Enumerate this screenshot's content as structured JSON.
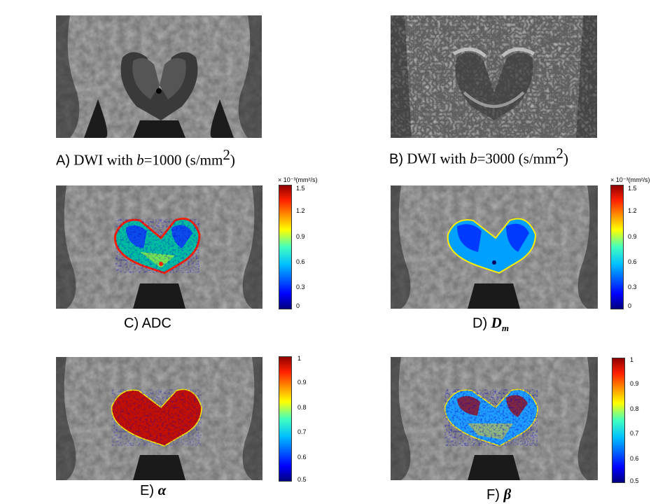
{
  "panels": [
    {
      "id": "A",
      "letter": "A)",
      "text_pre": " DWI with ",
      "text_italic": "b",
      "text_post": "=1000 (s/mm",
      "sup": "2",
      "text_end": ")"
    },
    {
      "id": "B",
      "letter": "B)",
      "text_pre": " DWI with ",
      "text_italic": "b",
      "text_post": "=3000 (s/mm",
      "sup": "2",
      "text_end": ")"
    },
    {
      "id": "C",
      "letter": "C)",
      "label": " ADC"
    },
    {
      "id": "D",
      "letter": "D)",
      "sym": "D",
      "sub": "m"
    },
    {
      "id": "E",
      "letter": "E)",
      "sym": "α"
    },
    {
      "id": "F",
      "letter": "F)",
      "sym": "β"
    }
  ],
  "colorbars": {
    "unit_label": "× 10⁻³(mm²/s)",
    "diffusion_ticks": [
      "1.5",
      "1.2",
      "0.9",
      "0.6",
      "0.3",
      "0"
    ],
    "fraction_ticks": [
      "1",
      "0.9",
      "0.8",
      "0.7",
      "0.6",
      "0.5"
    ]
  },
  "colors": {
    "jet_top": "#b00000",
    "jet_mid": "#40ffbf",
    "jet_bottom": "#00007f"
  }
}
